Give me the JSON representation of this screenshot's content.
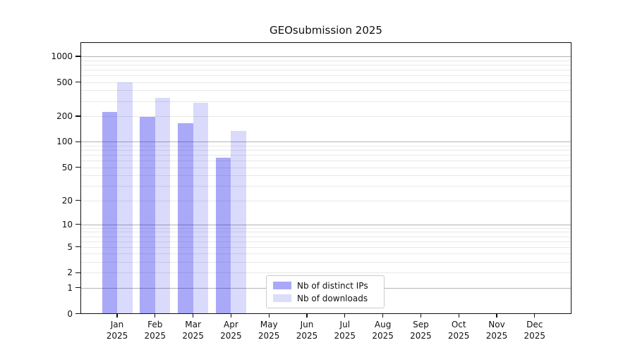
{
  "title": "GEOsubmission 2025",
  "legend": {
    "items": [
      {
        "label": "Nb of distinct IPs"
      },
      {
        "label": "Nb of downloads"
      }
    ],
    "position": "lower center inside plot"
  },
  "colors": {
    "bar_distinct_ips": "#a9a9f8",
    "bar_downloads": "#dcdcfb",
    "grid_major": "#b3b3b3",
    "grid_minor": "#e8e8e8",
    "axis_spine": "#111111",
    "text": "#111111",
    "legend_border": "#cccccc",
    "background": "#ffffff"
  },
  "chart_data": {
    "type": "bar",
    "title": "GEOsubmission 2025",
    "categories": [
      "Jan 2025",
      "Feb 2025",
      "Mar 2025",
      "Apr 2025",
      "May 2025",
      "Jun 2025",
      "Jul 2025",
      "Aug 2025",
      "Sep 2025",
      "Oct 2025",
      "Nov 2025",
      "Dec 2025"
    ],
    "series": [
      {
        "name": "Nb of distinct IPs",
        "color": "#a9a9f8",
        "rgba": "rgba(10,10,235,0.35)",
        "values": [
          225,
          195,
          165,
          65,
          0,
          0,
          0,
          0,
          0,
          0,
          0,
          0
        ]
      },
      {
        "name": "Nb of downloads",
        "color": "#dcdcfb",
        "rgba": "rgba(10,10,235,0.15)",
        "values": [
          500,
          330,
          285,
          135,
          0,
          0,
          0,
          0,
          0,
          0,
          0,
          0
        ]
      }
    ],
    "yscale": "log1p",
    "yticks": [
      0,
      1,
      2,
      5,
      10,
      20,
      50,
      100,
      200,
      500,
      1000
    ],
    "major_gridlines": [
      1,
      10,
      100,
      1000
    ],
    "ylim": [
      0,
      1400
    ],
    "xlabel": "",
    "ylabel": "",
    "grid": true,
    "legend_position": "lower center"
  }
}
